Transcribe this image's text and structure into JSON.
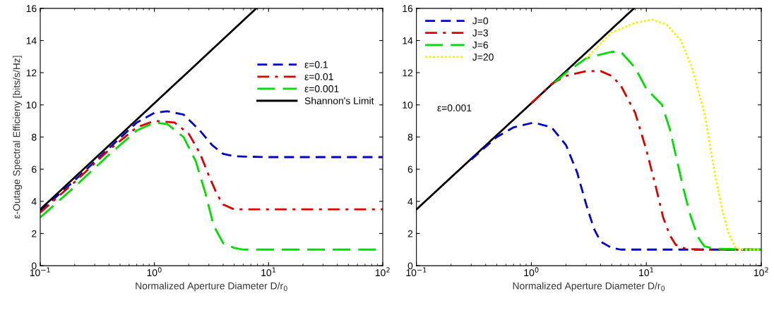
{
  "chart_data": [
    {
      "type": "line",
      "xlabel": "Normalized Aperture Diameter D/r$_{0}$",
      "ylabel": "ε-Outage Spectral Efficieny [bits/s/Hz]",
      "log": "x",
      "xlim": [
        0.1,
        100
      ],
      "ylim": [
        0,
        16
      ],
      "xticks": [
        {
          "value": 0.1,
          "label": "10$^{−1}$"
        },
        {
          "value": 1,
          "label": "10$^{0}$"
        },
        {
          "value": 10,
          "label": "10$^{1}$"
        },
        {
          "value": 100,
          "label": "10$^{2}$"
        }
      ],
      "yticks": [
        0,
        2,
        4,
        6,
        8,
        10,
        12,
        14,
        16
      ],
      "grid": false,
      "legend": "top right",
      "series": [
        {
          "name": "ε=0.1",
          "color": "#0000cc",
          "line_style": "dashed",
          "x": [
            0.1,
            0.2,
            0.4,
            0.7,
            1.0,
            1.3,
            1.8,
            2.5,
            3.2,
            4,
            5,
            10,
            100
          ],
          "values": [
            3.4,
            5.3,
            7.3,
            8.9,
            9.5,
            9.6,
            9.4,
            8.4,
            7.5,
            6.95,
            6.8,
            6.75,
            6.75
          ]
        },
        {
          "name": "ε=0.01",
          "color": "#dd0000",
          "line_style": "dashdot",
          "x": [
            0.1,
            0.2,
            0.4,
            0.7,
            1.0,
            1.5,
            2.0,
            2.5,
            3.0,
            3.5,
            4.0,
            5,
            100
          ],
          "values": [
            3.3,
            5.2,
            7.2,
            8.6,
            9.0,
            8.9,
            8.2,
            7.0,
            5.6,
            4.5,
            3.8,
            3.5,
            3.5
          ]
        },
        {
          "name": "ε=0.001",
          "color": "#00dd00",
          "line_style": "longdash",
          "x": [
            0.1,
            0.2,
            0.4,
            0.7,
            1.0,
            1.3,
            1.8,
            2.3,
            2.8,
            3.3,
            4.0,
            5,
            6,
            100
          ],
          "values": [
            3.0,
            4.9,
            6.9,
            8.4,
            8.9,
            8.8,
            8.0,
            6.5,
            4.5,
            2.5,
            1.4,
            1.1,
            1.0,
            1.0
          ]
        },
        {
          "name": "Shannon's Limit",
          "color": "#000000",
          "line_style": "solid",
          "x": [
            0.1,
            1,
            7.8
          ],
          "values": [
            3.5,
            10.1,
            16
          ]
        }
      ]
    },
    {
      "type": "line",
      "xlabel": "Normalized Aperture Diameter D/r$_{0}$",
      "log": "x",
      "xlim": [
        0.1,
        100
      ],
      "ylim": [
        0,
        16
      ],
      "xticks": [
        {
          "value": 0.1,
          "label": "10$^{−1}$"
        },
        {
          "value": 1,
          "label": "10$^{0}$"
        },
        {
          "value": 10,
          "label": "10$^{1}$"
        },
        {
          "value": 100,
          "label": "10$^{2}$"
        }
      ],
      "yticks": [
        0,
        2,
        4,
        6,
        8,
        10,
        12,
        14,
        16
      ],
      "grid": false,
      "legend": "top left",
      "annotations": [
        "ε=0.001"
      ],
      "series": [
        {
          "color": "#000000",
          "line_style": "solid",
          "x": [
            0.1,
            1,
            7.8
          ],
          "values": [
            3.5,
            10.1,
            16
          ]
        },
        {
          "name": "J=0",
          "color": "#0000cc",
          "line_style": "dashed",
          "x": [
            0.3,
            0.5,
            0.7,
            1.05,
            1.5,
            2,
            2.5,
            3.0,
            3.5,
            4,
            5,
            6,
            100
          ],
          "values": [
            6.6,
            8.0,
            8.6,
            8.9,
            8.6,
            7.5,
            5.8,
            3.8,
            2.3,
            1.5,
            1.1,
            1.0,
            1.0
          ]
        },
        {
          "name": "J=3",
          "color": "#dd0000",
          "line_style": "dashdot",
          "x": [
            1.0,
            1.5,
            2,
            3,
            4,
            5,
            6,
            8,
            10,
            12,
            14,
            16,
            18,
            22,
            30,
            100
          ],
          "values": [
            10.1,
            11.3,
            11.8,
            12.1,
            12.1,
            11.8,
            11.2,
            9.5,
            7.2,
            5.0,
            3.0,
            1.9,
            1.3,
            1.05,
            1.0,
            1.0
          ]
        },
        {
          "name": "J=6",
          "color": "#00dd00",
          "line_style": "longdash",
          "x": [
            1.6,
            2,
            3,
            5,
            6,
            8,
            10,
            13.7,
            16,
            21,
            24,
            28,
            32,
            40,
            100
          ],
          "values": [
            11.4,
            12.0,
            12.9,
            13.3,
            13.3,
            12.3,
            11.0,
            10.0,
            8.5,
            4.8,
            3.2,
            1.8,
            1.2,
            1.05,
            1.0
          ]
        },
        {
          "name": "J=20",
          "color": "#f0f000",
          "line_style": "dotted",
          "x": [
            3,
            5,
            8,
            11.2,
            15,
            20,
            25,
            32,
            40,
            46,
            52,
            60,
            70,
            100
          ],
          "values": [
            12.9,
            14.5,
            15.1,
            15.3,
            15.0,
            14.0,
            12.3,
            9.5,
            5.5,
            3.4,
            2.0,
            1.1,
            1.0,
            1.0
          ]
        }
      ]
    }
  ]
}
